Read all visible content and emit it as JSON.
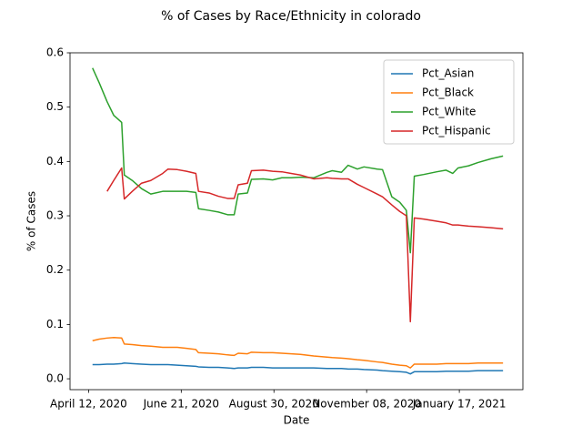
{
  "chart_data": {
    "type": "line",
    "title": "% of Cases by Race/Ethnicity in colorado",
    "x_label": "Date",
    "y_label": "% of Cases",
    "x": [
      "2020-04-15",
      "2020-04-20",
      "2020-04-26",
      "2020-05-01",
      "2020-05-07",
      "2020-05-09",
      "2020-05-15",
      "2020-05-22",
      "2020-05-29",
      "2020-06-07",
      "2020-06-11",
      "2020-06-18",
      "2020-06-25",
      "2020-07-02",
      "2020-07-04",
      "2020-07-12",
      "2020-07-19",
      "2020-07-26",
      "2020-07-31",
      "2020-08-03",
      "2020-08-10",
      "2020-08-13",
      "2020-08-22",
      "2020-08-29",
      "2020-09-05",
      "2020-09-12",
      "2020-09-19",
      "2020-09-29",
      "2020-10-09",
      "2020-10-13",
      "2020-10-20",
      "2020-10-25",
      "2020-11-01",
      "2020-11-06",
      "2020-11-16",
      "2020-11-20",
      "2020-11-27",
      "2020-12-03",
      "2020-12-08",
      "2020-12-11",
      "2020-12-14",
      "2020-12-21",
      "2020-12-31",
      "2021-01-07",
      "2021-01-12",
      "2021-01-16",
      "2021-01-24",
      "2021-01-31",
      "2021-02-10",
      "2021-02-19"
    ],
    "series": [
      {
        "name": "Pct_Asian",
        "color": "#1f77b4",
        "values": [
          0.026,
          0.026,
          0.027,
          0.027,
          0.028,
          0.029,
          0.028,
          0.027,
          0.026,
          0.026,
          0.026,
          0.025,
          0.024,
          0.023,
          0.022,
          0.021,
          0.021,
          0.02,
          0.019,
          0.02,
          0.02,
          0.021,
          0.021,
          0.02,
          0.02,
          0.02,
          0.02,
          0.02,
          0.019,
          0.019,
          0.019,
          0.018,
          0.018,
          0.017,
          0.016,
          0.015,
          0.014,
          0.013,
          0.012,
          0.009,
          0.013,
          0.013,
          0.013,
          0.014,
          0.014,
          0.014,
          0.014,
          0.015,
          0.015,
          0.015
        ]
      },
      {
        "name": "Pct_Black",
        "color": "#ff7f0e",
        "values": [
          0.07,
          0.073,
          0.075,
          0.076,
          0.075,
          0.064,
          0.063,
          0.061,
          0.06,
          0.058,
          0.058,
          0.058,
          0.056,
          0.054,
          0.048,
          0.047,
          0.046,
          0.044,
          0.043,
          0.047,
          0.046,
          0.049,
          0.048,
          0.048,
          0.047,
          0.046,
          0.045,
          0.042,
          0.04,
          0.039,
          0.038,
          0.037,
          0.035,
          0.034,
          0.031,
          0.03,
          0.027,
          0.025,
          0.024,
          0.02,
          0.027,
          0.027,
          0.027,
          0.028,
          0.028,
          0.028,
          0.028,
          0.029,
          0.029,
          0.029
        ]
      },
      {
        "name": "Pct_White",
        "color": "#2ca02c",
        "values": [
          0.572,
          0.545,
          0.51,
          0.485,
          0.472,
          0.375,
          0.365,
          0.35,
          0.34,
          0.345,
          0.345,
          0.345,
          0.345,
          0.343,
          0.313,
          0.31,
          0.307,
          0.302,
          0.302,
          0.34,
          0.342,
          0.367,
          0.368,
          0.366,
          0.37,
          0.37,
          0.371,
          0.37,
          0.38,
          0.383,
          0.38,
          0.393,
          0.386,
          0.39,
          0.386,
          0.385,
          0.335,
          0.325,
          0.31,
          0.232,
          0.373,
          0.376,
          0.381,
          0.384,
          0.378,
          0.388,
          0.392,
          0.398,
          0.405,
          0.41
        ]
      },
      {
        "name": "Pct_Hispanic",
        "color": "#d62728",
        "values": [
          null,
          null,
          0.345,
          0.365,
          0.388,
          0.331,
          0.345,
          0.36,
          0.365,
          0.378,
          0.386,
          0.385,
          0.382,
          0.378,
          0.345,
          0.342,
          0.336,
          0.332,
          0.332,
          0.357,
          0.36,
          0.383,
          0.384,
          0.382,
          0.381,
          0.378,
          0.375,
          0.368,
          0.37,
          0.369,
          0.368,
          0.368,
          0.358,
          0.352,
          0.34,
          0.335,
          0.32,
          0.308,
          0.3,
          0.105,
          0.296,
          0.294,
          0.29,
          0.287,
          0.283,
          0.283,
          0.281,
          0.28,
          0.278,
          0.276
        ]
      }
    ],
    "xlim": [
      "2020-03-29",
      "2021-03-06"
    ],
    "xticks": [
      {
        "value": "2020-04-12",
        "label": "April 12, 2020"
      },
      {
        "value": "2020-06-21",
        "label": "June 21, 2020"
      },
      {
        "value": "2020-08-30",
        "label": "August 30, 2020"
      },
      {
        "value": "2020-11-08",
        "label": "November 08, 2020"
      },
      {
        "value": "2021-01-17",
        "label": "January 17, 2021"
      }
    ],
    "ylim": [
      -0.02,
      0.6
    ],
    "yticks": [
      {
        "value": 0,
        "label": "0.0"
      },
      0.1,
      0.2,
      0.3,
      0.4,
      0.5,
      0.6
    ],
    "legend": "upper right",
    "grid": false
  }
}
